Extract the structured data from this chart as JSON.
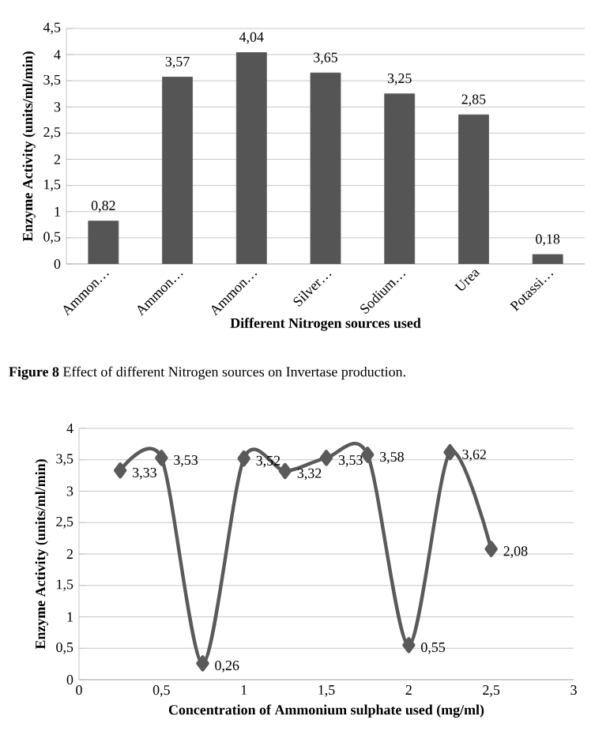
{
  "chart_data": [
    {
      "type": "bar",
      "xlabel": "Different  Nitrogen sources used",
      "ylabel": "Enzyme Activity (units/ml/min)",
      "categories": [
        "Ammon…",
        "Ammon…",
        "Ammon…",
        "Silver…",
        "Sodium…",
        "Urea",
        "Potassi…"
      ],
      "values": [
        0.82,
        3.57,
        4.04,
        3.65,
        3.25,
        2.85,
        0.18
      ],
      "value_labels": [
        "0,82",
        "3,57",
        "4,04",
        "3,65",
        "3,25",
        "2,85",
        "0,18"
      ],
      "color": "#555555",
      "ylim": [
        0,
        4.5
      ],
      "yticks": [
        0,
        {
          "value": 0.5,
          "label": "0,5"
        },
        1,
        {
          "value": 1.5,
          "label": "1,5"
        },
        2,
        {
          "value": 2.5,
          "label": "2,5"
        },
        3,
        {
          "value": 3.5,
          "label": "3,5"
        },
        4,
        {
          "value": 4.5,
          "label": "4,5"
        }
      ],
      "grid": "y",
      "annotations": [
        "**Figure 8** Effect of different Nitrogen sources on Invertase production."
      ]
    },
    {
      "type": "line",
      "xlabel": "Concentration of Ammonium sulphate used (mg/ml)",
      "ylabel": "Enzyme Activity (units/ml/min)",
      "x": [
        0.25,
        0.5,
        0.75,
        1,
        1.25,
        1.5,
        1.75,
        2,
        2.25,
        2.5
      ],
      "values": [
        3.33,
        3.53,
        0.26,
        3.52,
        3.32,
        3.53,
        3.58,
        0.55,
        3.62,
        2.08
      ],
      "value_labels": [
        "3,33",
        "3,53",
        "0,26",
        "3,52",
        "3,32",
        "3,53",
        "3,58",
        "0,55",
        "3,62",
        "2,08"
      ],
      "color": "#5a5a5a",
      "marker": "diamond",
      "line_style": "solid",
      "xlim": [
        0,
        3
      ],
      "xticks": [
        0,
        {
          "value": 0.5,
          "label": "0,5"
        },
        1,
        {
          "value": 1.5,
          "label": "1,5"
        },
        2,
        {
          "value": 2.5,
          "label": "2,5"
        },
        3
      ],
      "ylim": [
        0,
        4
      ],
      "yticks": [
        0,
        {
          "value": 0.5,
          "label": "0,5"
        },
        1,
        {
          "value": 1.5,
          "label": "1,5"
        },
        2,
        {
          "value": 2.5,
          "label": "2,5"
        },
        3,
        {
          "value": 3.5,
          "label": "3,5"
        },
        4
      ],
      "grid": "y"
    }
  ]
}
